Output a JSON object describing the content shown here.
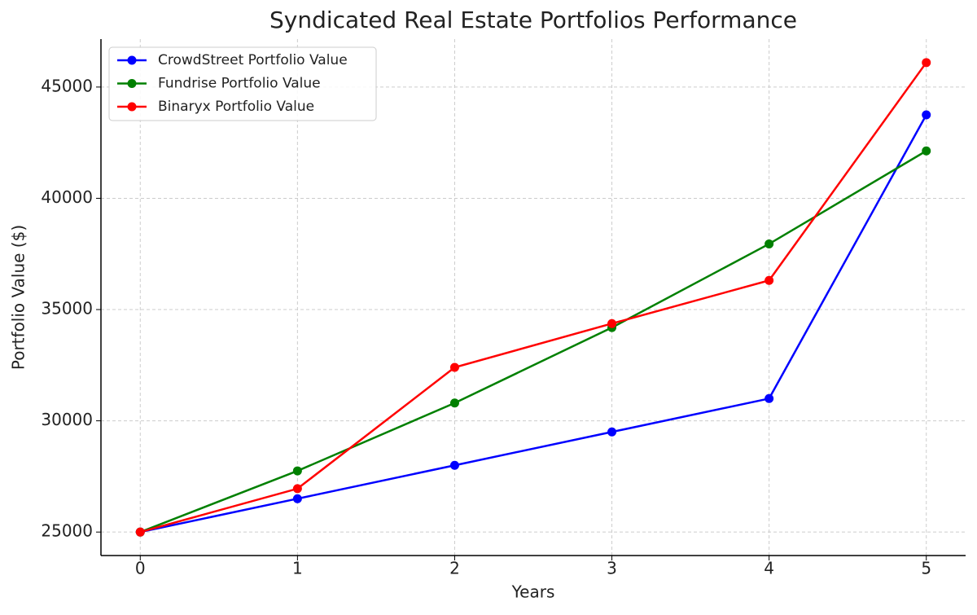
{
  "chart_data": {
    "type": "line",
    "title": "Syndicated Real Estate Portfolios Performance",
    "x_label": "Years",
    "y_label": "Portfolio Value ($)",
    "x": [
      0,
      1,
      2,
      3,
      4,
      5
    ],
    "series": [
      {
        "name": "CrowdStreet Portfolio Value",
        "color": "#0000ff",
        "values": [
          25000,
          26500,
          28000,
          29500,
          31000,
          43750
        ]
      },
      {
        "name": "Fundrise Portfolio Value",
        "color": "#008000",
        "values": [
          25000,
          27750,
          30800,
          34190,
          37950,
          42130
        ]
      },
      {
        "name": "Binaryx Portfolio Value",
        "color": "#ff0000",
        "values": [
          25000,
          26950,
          32400,
          34370,
          36310,
          46100
        ]
      }
    ],
    "xlim": [
      -0.25,
      5.25
    ],
    "xticks": [
      0,
      1,
      2,
      3,
      4,
      5
    ],
    "ylim": [
      23945,
      47155
    ],
    "yticks": [
      25000,
      30000,
      35000,
      40000,
      45000
    ],
    "grid": true,
    "legend": "upper left"
  }
}
